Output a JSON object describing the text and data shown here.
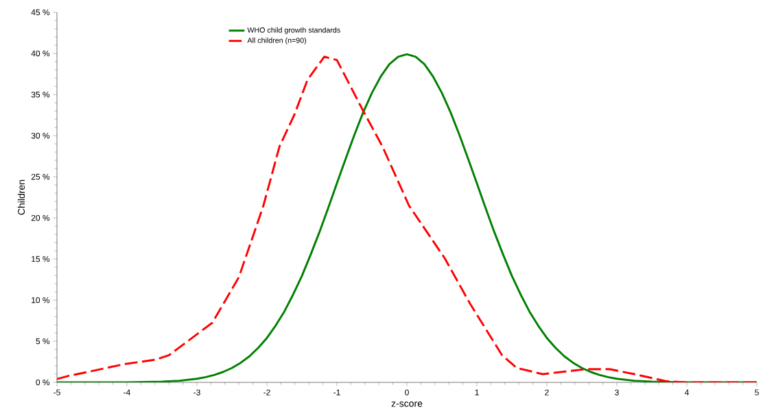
{
  "chart_data": {
    "type": "line",
    "xlabel": "z-score",
    "ylabel": "Children",
    "xlim": [
      -5,
      5
    ],
    "xticks": [
      -5,
      -4,
      -3,
      -2,
      -1,
      0,
      1,
      2,
      3,
      4,
      5
    ],
    "ylim": [
      0,
      45
    ],
    "yticks": [
      {
        "value": 0,
        "label": "0 %"
      },
      {
        "value": 5,
        "label": "5 %"
      },
      {
        "value": 10,
        "label": "10 %"
      },
      {
        "value": 15,
        "label": "15 %"
      },
      {
        "value": 20,
        "label": "20 %"
      },
      {
        "value": 25,
        "label": "25 %"
      },
      {
        "value": 30,
        "label": "30 %"
      },
      {
        "value": 35,
        "label": "35 %"
      },
      {
        "value": 40,
        "label": "40 %"
      },
      {
        "value": 45,
        "label": "45 %"
      }
    ],
    "legend": "top left",
    "grid": false,
    "marker": "none",
    "series": [
      {
        "name": "WHO child growth standards",
        "color": "#008000",
        "line_style": "solid",
        "x": [
          -5,
          -4.5,
          -4,
          -3.75,
          -3.5,
          -3.25,
          -3,
          -2.875,
          -2.75,
          -2.625,
          -2.5,
          -2.375,
          -2.25,
          -2.125,
          -2,
          -1.875,
          -1.75,
          -1.625,
          -1.5,
          -1.375,
          -1.25,
          -1.125,
          -1,
          -0.875,
          -0.75,
          -0.625,
          -0.5,
          -0.375,
          -0.25,
          -0.125,
          0,
          0.125,
          0.25,
          0.375,
          0.5,
          0.625,
          0.75,
          0.875,
          1,
          1.125,
          1.25,
          1.375,
          1.5,
          1.625,
          1.75,
          1.875,
          2,
          2.125,
          2.25,
          2.375,
          2.5,
          2.625,
          2.75,
          2.875,
          3,
          3.25,
          3.5,
          3.75,
          4,
          4.5,
          5
        ],
        "values": [
          0,
          0,
          0.01,
          0.035,
          0.09,
          0.2,
          0.44,
          0.64,
          0.91,
          1.27,
          1.75,
          2.38,
          3.17,
          4.19,
          5.4,
          6.91,
          8.63,
          10.69,
          12.95,
          15.53,
          18.26,
          21.19,
          24.2,
          27.19,
          30.1,
          32.82,
          35.2,
          37.17,
          38.7,
          39.59,
          39.9,
          39.59,
          38.7,
          37.17,
          35.2,
          32.82,
          30.1,
          27.19,
          24.2,
          21.19,
          18.26,
          15.53,
          12.95,
          10.69,
          8.63,
          6.91,
          5.4,
          4.19,
          3.17,
          2.38,
          1.75,
          1.27,
          0.91,
          0.64,
          0.44,
          0.2,
          0.09,
          0.035,
          0.01,
          0,
          0
        ]
      },
      {
        "name": "All children (n=90)",
        "color": "#ff0000",
        "line_style": "dashed",
        "x": [
          -5,
          -4.83,
          -4.54,
          -4.05,
          -3.6,
          -3.4,
          -2.78,
          -2.4,
          -2.34,
          -2.17,
          -2.05,
          -1.82,
          -1.61,
          -1.42,
          -1.18,
          -1.0,
          -0.63,
          -0.35,
          0.03,
          0.54,
          0.9,
          1.36,
          1.57,
          1.94,
          2.55,
          2.9,
          3.25,
          3.7,
          4,
          5
        ],
        "values": [
          0.4,
          0.8,
          1.3,
          2.2,
          2.75,
          3.3,
          7.25,
          12.8,
          14.3,
          18.5,
          21.5,
          28.7,
          32.5,
          36.8,
          39.6,
          39.2,
          33.1,
          28.7,
          21.5,
          15.1,
          9.6,
          3.3,
          1.75,
          1.0,
          1.6,
          1.6,
          1.0,
          0.15,
          0,
          0
        ]
      }
    ]
  }
}
